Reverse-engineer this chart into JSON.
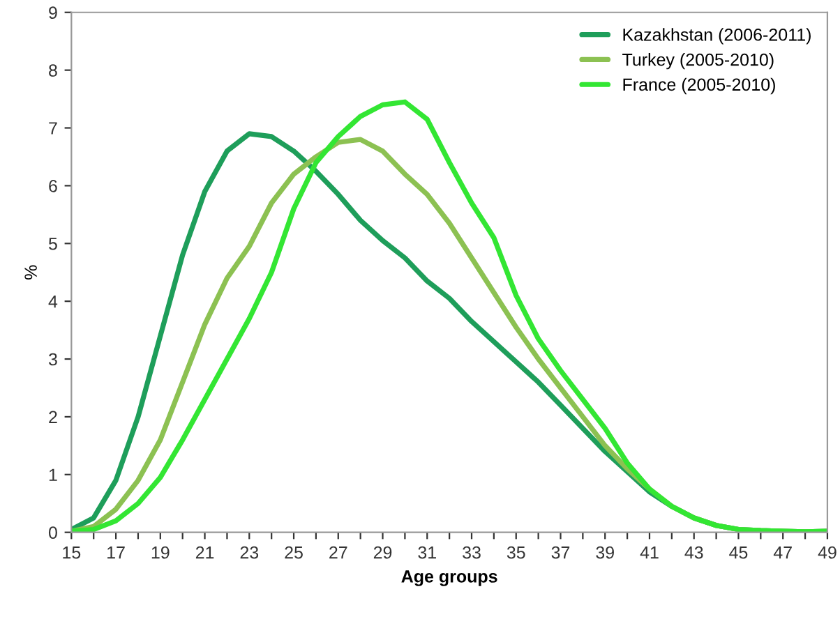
{
  "chart_data": {
    "type": "line",
    "xlabel": "Age groups",
    "ylabel": "%",
    "categories": [
      "15",
      null,
      "17",
      null,
      "19",
      null,
      "21",
      null,
      "23",
      null,
      "25",
      null,
      "27",
      null,
      "29",
      null,
      "31",
      null,
      "33",
      null,
      "35",
      null,
      "37",
      null,
      "39",
      null,
      "41",
      null,
      "43",
      null,
      "45",
      null,
      "47",
      null,
      "49"
    ],
    "series": [
      {
        "name": "Kazakhstan (2006-2011)",
        "color": "#1e9e5a",
        "values": [
          0.05,
          0.25,
          0.9,
          2.0,
          3.4,
          4.8,
          5.9,
          6.6,
          6.9,
          6.85,
          6.6,
          6.25,
          5.85,
          5.4,
          5.05,
          4.75,
          4.35,
          4.05,
          3.65,
          3.3,
          2.95,
          2.6,
          2.2,
          1.8,
          1.4,
          1.05,
          0.7,
          0.45,
          0.25,
          0.12,
          0.05,
          0.03,
          0.02,
          0.01,
          0.02
        ]
      },
      {
        "name": "Turkey (2005-2010)",
        "color": "#8cc152",
        "values": [
          0.02,
          0.1,
          0.4,
          0.9,
          1.6,
          2.6,
          3.6,
          4.4,
          4.95,
          5.7,
          6.2,
          6.5,
          6.75,
          6.8,
          6.6,
          6.2,
          5.85,
          5.35,
          4.75,
          4.15,
          3.55,
          3.0,
          2.5,
          2.0,
          1.5,
          1.1,
          0.75,
          0.45,
          0.25,
          0.12,
          0.05,
          0.03,
          0.02,
          0.01,
          0.02
        ]
      },
      {
        "name": "France (2005-2010)",
        "color": "#33e633",
        "values": [
          0.02,
          0.05,
          0.2,
          0.5,
          0.95,
          1.6,
          2.3,
          3.0,
          3.7,
          4.5,
          5.6,
          6.4,
          6.85,
          7.2,
          7.4,
          7.45,
          7.15,
          6.4,
          5.7,
          5.1,
          4.1,
          3.35,
          2.8,
          2.3,
          1.8,
          1.2,
          0.75,
          0.45,
          0.25,
          0.12,
          0.05,
          0.03,
          0.02,
          0.01,
          0.02
        ]
      }
    ],
    "ylim": [
      0,
      9
    ],
    "yticks": [
      0,
      1,
      2,
      3,
      4,
      5,
      6,
      7,
      8,
      9
    ],
    "grid": false,
    "legend": "top right",
    "marker": "none",
    "line_style": "solid"
  }
}
